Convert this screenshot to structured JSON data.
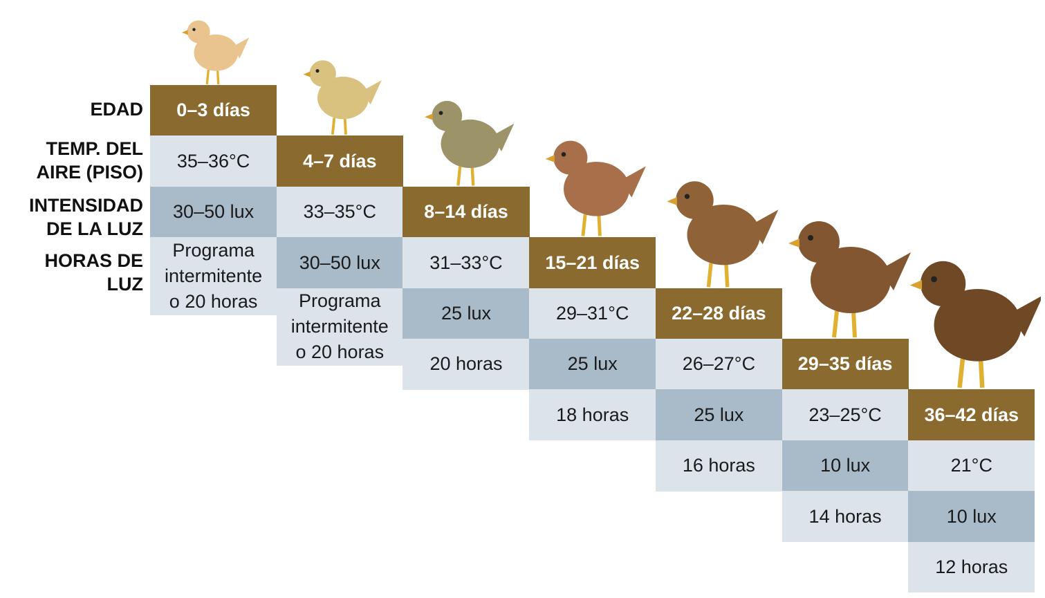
{
  "row_labels": [
    [
      "EDAD"
    ],
    [
      "TEMP. DEL",
      "AIRE (PISO)"
    ],
    [
      "INTENSIDAD",
      "DE LA LUZ"
    ],
    [
      "HORAS DE",
      "LUZ"
    ]
  ],
  "stages": [
    {
      "age": [
        "0–3 días"
      ],
      "temp": [
        "35–36°C"
      ],
      "light": [
        "30–50 lux"
      ],
      "hours": [
        "Programa",
        "intermitente",
        "o 20 horas"
      ]
    },
    {
      "age": [
        "4–7 días"
      ],
      "temp": [
        "33–35°C"
      ],
      "light": [
        "30–50 lux"
      ],
      "hours": [
        "Programa",
        "intermitente",
        "o 20 horas"
      ]
    },
    {
      "age": [
        "8–14 días"
      ],
      "temp": [
        "31–33°C"
      ],
      "light": [
        "25 lux"
      ],
      "hours": [
        "20 horas"
      ]
    },
    {
      "age": [
        "15–21 días"
      ],
      "temp": [
        "29–31°C"
      ],
      "light": [
        "25 lux"
      ],
      "hours": [
        "18 horas"
      ]
    },
    {
      "age": [
        "22–28 días"
      ],
      "temp": [
        "26–27°C"
      ],
      "light": [
        "25 lux"
      ],
      "hours": [
        "16 horas"
      ]
    },
    {
      "age": [
        "29–35 días"
      ],
      "temp": [
        "23–25°C"
      ],
      "light": [
        "10 lux"
      ],
      "hours": [
        "14 horas"
      ]
    },
    {
      "age": [
        "36–42 días"
      ],
      "temp": [
        "21°C"
      ],
      "light": [
        "10 lux"
      ],
      "hours": [
        "12 horas"
      ]
    }
  ]
}
